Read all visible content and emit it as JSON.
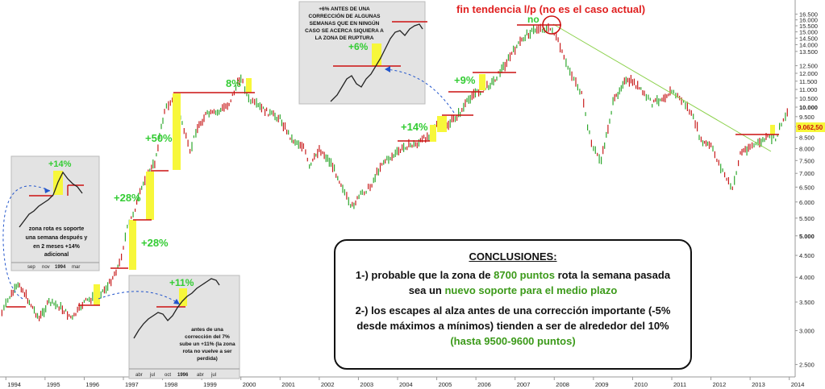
{
  "chart_data": {
    "type": "line",
    "y_scale": "log",
    "ylim": [
      2400,
      17200
    ],
    "xlim": [
      1993.85,
      2014.15
    ],
    "x_ticks": [
      "1994",
      "1995",
      "1996",
      "1997",
      "1998",
      "1999",
      "2000",
      "2001",
      "2002",
      "2003",
      "2004",
      "2005",
      "2006",
      "2007",
      "2008",
      "2009",
      "2010",
      "2011",
      "2012",
      "2013",
      "2014"
    ],
    "y_ticks": [
      "2.500",
      "3.000",
      "3.500",
      "4.000",
      "4.500",
      "5.000",
      "5.500",
      "6.000",
      "6.500",
      "7.000",
      "7.500",
      "8.000",
      "8.500",
      "9.000",
      "9.500",
      "10.000",
      "10.500",
      "11.000",
      "11.500",
      "12.000",
      "12.500",
      "13.500",
      "14.000",
      "14.500",
      "15.000",
      "15.500",
      "16.000",
      "16.500"
    ],
    "last_price": "9.062,50",
    "series": [
      {
        "x": [
          1993.9,
          1994.1,
          1994.35,
          1994.6,
          1994.85,
          1995.1,
          1995.4,
          1995.7,
          1996.0,
          1996.3,
          1996.6,
          1996.9,
          1997.1,
          1997.3,
          1997.55,
          1997.8,
          1998.05,
          1998.25,
          1998.5,
          1998.7,
          1998.85,
          1999.1,
          1999.4,
          1999.7,
          2000.0,
          2000.2,
          2000.4,
          2000.7,
          2001.0,
          2001.3,
          2001.6,
          2001.75,
          2002.0,
          2002.3,
          2002.6,
          2002.8,
          2003.1,
          2003.3,
          2003.6,
          2003.9,
          2004.2,
          2004.5,
          2004.8,
          2005.0,
          2005.3,
          2005.6,
          2005.9,
          2006.2,
          2006.45,
          2006.7,
          2007.0,
          2007.3,
          2007.6,
          2007.8,
          2007.95,
          2008.1,
          2008.3,
          2008.5,
          2008.7,
          2008.85,
          2009.0,
          2009.2,
          2009.5,
          2009.75,
          2010.0,
          2010.3,
          2010.5,
          2010.75,
          2011.0,
          2011.2,
          2011.4,
          2011.6,
          2011.75,
          2012.0,
          2012.2,
          2012.4,
          2012.55,
          2012.75,
          2013.0,
          2013.2,
          2013.45,
          2013.65,
          2013.8,
          2014.0
        ],
        "values": [
          3300,
          3600,
          3850,
          3500,
          3200,
          3500,
          3400,
          3200,
          3500,
          3600,
          3800,
          4300,
          5200,
          5800,
          6800,
          7400,
          9800,
          10500,
          9200,
          7800,
          8800,
          9600,
          9700,
          10200,
          11800,
          10400,
          10100,
          9700,
          9400,
          8400,
          8100,
          7200,
          8000,
          7400,
          6500,
          5800,
          6300,
          6500,
          7400,
          7700,
          8100,
          8200,
          8600,
          9100,
          9100,
          9700,
          10700,
          11000,
          11500,
          12400,
          13700,
          14800,
          15300,
          15200,
          15200,
          14200,
          12600,
          11700,
          10700,
          9000,
          8000,
          7500,
          10200,
          11400,
          11500,
          10700,
          10200,
          10500,
          10900,
          10500,
          10000,
          9200,
          8300,
          8100,
          7400,
          6800,
          6400,
          7800,
          8100,
          8200,
          8500,
          8400,
          9200,
          9900
        ]
      }
    ]
  },
  "annotations": {
    "top_title": "fin tendencia l/p (no es el caso actual)",
    "no_label": "no",
    "pct_labels": [
      "8%",
      "+50%",
      "+28%",
      "+28%",
      "+14%",
      "+9%"
    ],
    "conclusions": {
      "title": "CONCLUSIONES:",
      "l1a": "1-)  probable que la zona de ",
      "l1b": "8700 puntos",
      "l1c": " rota la semana pasada",
      "l2a": "sea un ",
      "l2b": "nuevo soporte para el medio plazo",
      "l3": "2-) los escapes al alza antes de una corrección importante  (-5% desde máximos a mínimos) tienden a ser de alrededor del 10%",
      "l4": "(hasta 9500-9600 puntos)"
    },
    "inset1": {
      "pct": "+14%",
      "text": [
        "zona rota es soporte",
        "una semana después y",
        "en 2 meses +14%",
        "adicional"
      ],
      "axis": [
        "sep",
        "nov",
        "1994",
        "mar"
      ]
    },
    "inset2": {
      "pct": "+6%",
      "text": [
        "+6% ANTES DE UNA",
        "CORRECCIÓN DE ALGUNAS",
        "SEMANAS QUE EN NINGÚN",
        "CASO SE ACERCA SIQUIERA A",
        "LA ZONA DE RUPTURA"
      ]
    },
    "inset3": {
      "pct": "+11%",
      "text": [
        "antes de una",
        "corrección del 7%",
        "sube un +11% (la zona",
        "rota no vuelve a ser",
        "perdida)"
      ],
      "axis": [
        "abr",
        "jul",
        "oct",
        "1996",
        "abr",
        "jul"
      ]
    }
  }
}
